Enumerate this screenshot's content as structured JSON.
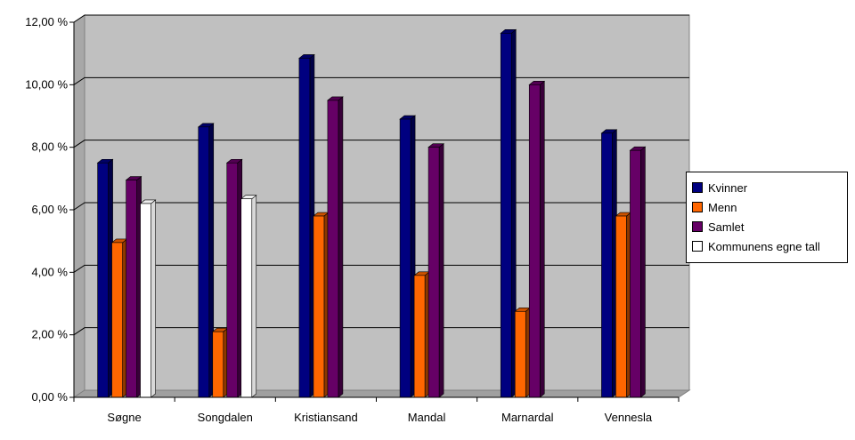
{
  "chart_data": {
    "type": "bar",
    "title": "",
    "xlabel": "",
    "ylabel": "",
    "ylim": [
      0,
      12
    ],
    "y_ticks": [
      "0,00 %",
      "2,00 %",
      "4,00 %",
      "6,00 %",
      "8,00 %",
      "10,00 %",
      "12,00 %"
    ],
    "grid": true,
    "legend_position": "right",
    "categories": [
      "Søgne",
      "Songdalen",
      "Kristiansand",
      "Mandal",
      "Marnardal",
      "Vennesla"
    ],
    "series": [
      {
        "name": "Kvinner",
        "color": "#000080",
        "values": [
          7.5,
          8.65,
          10.85,
          8.9,
          11.65,
          8.45
        ]
      },
      {
        "name": "Menn",
        "color": "#ff6600",
        "values": [
          4.95,
          2.1,
          5.8,
          3.9,
          2.75,
          5.8
        ]
      },
      {
        "name": "Samlet",
        "color": "#660066",
        "values": [
          6.95,
          7.5,
          9.5,
          8.0,
          10.0,
          7.9
        ]
      },
      {
        "name": "Kommunens egne tall",
        "color": "#ffffff",
        "values": [
          6.2,
          6.35,
          null,
          null,
          null,
          null
        ]
      }
    ]
  }
}
